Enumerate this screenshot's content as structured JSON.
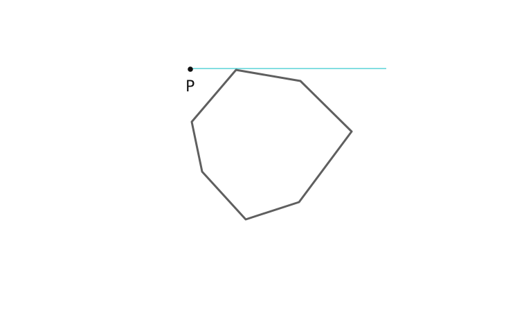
{
  "diagram": {
    "point_label": "P",
    "colors": {
      "polygon_stroke": "#5f5f5f",
      "tangent_line": "#39c9cf",
      "point": "#111111",
      "background": "#ffffff"
    }
  }
}
